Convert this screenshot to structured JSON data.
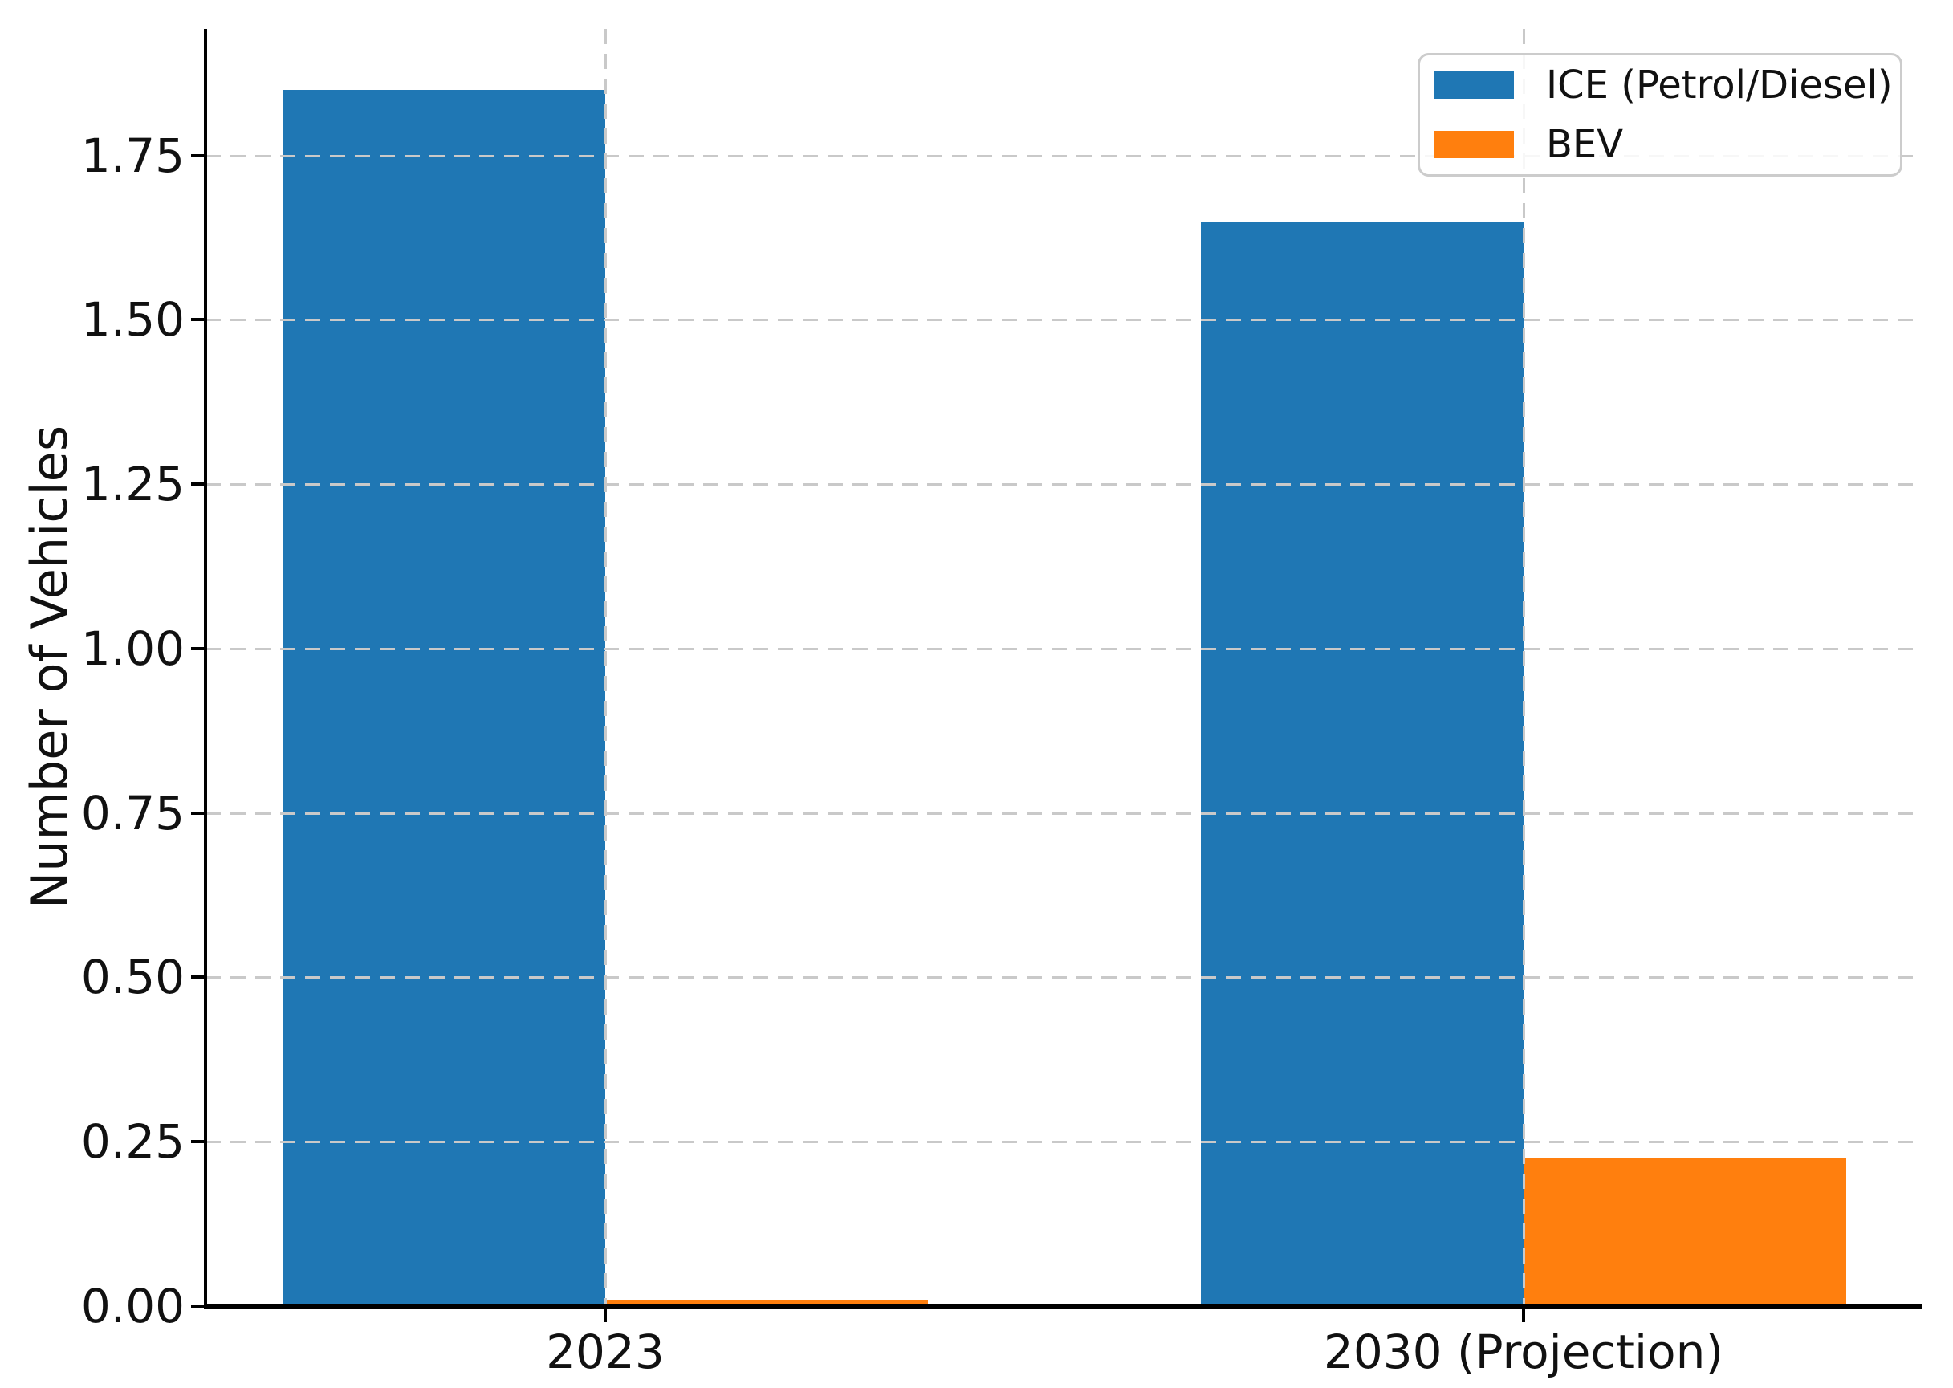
{
  "chart_data": {
    "type": "bar",
    "title": "",
    "xlabel": "",
    "ylabel": "Number of Vehicles",
    "categories": [
      "2023",
      "2030 (Projection)"
    ],
    "series": [
      {
        "name": "ICE (Petrol/Diesel)",
        "color": "#1f77b4",
        "values": [
          1.85,
          1.65
        ]
      },
      {
        "name": "BEV",
        "color": "#ff7f0e",
        "values": [
          0.01,
          0.225
        ]
      }
    ],
    "yticks": [
      {
        "value": 0.0,
        "label": "0.00"
      },
      {
        "value": 0.25,
        "label": "0.25"
      },
      {
        "value": 0.5,
        "label": "0.50"
      },
      {
        "value": 0.75,
        "label": "0.75"
      },
      {
        "value": 1.0,
        "label": "1.00"
      },
      {
        "value": 1.25,
        "label": "1.25"
      },
      {
        "value": 1.5,
        "label": "1.50"
      },
      {
        "value": 1.75,
        "label": "1.75"
      }
    ],
    "ylim": [
      0,
      1.9425
    ],
    "grid": {
      "style": "dashed",
      "horizontal": true,
      "vertical": true,
      "above_bars": true
    },
    "legend_position": "upper right",
    "colors": {
      "grid": "#c9c9c9",
      "text": "#111111",
      "spine": "#000000",
      "legend_border": "#cccccc"
    }
  }
}
